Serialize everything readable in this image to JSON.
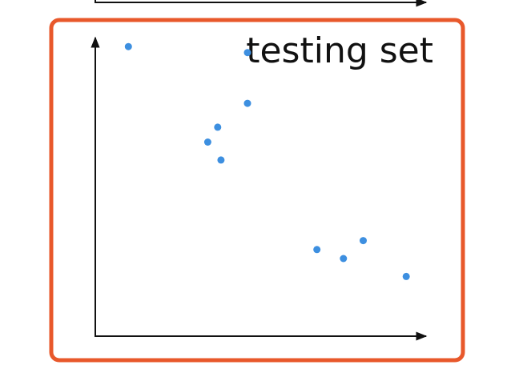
{
  "colors": {
    "frame": "#E8582B",
    "axis": "#111111",
    "point": "#3D8FE0",
    "title": "#111111",
    "background": "#FFFFFF"
  },
  "chart_data": {
    "type": "scatter",
    "title": "testing set",
    "xlabel": "",
    "ylabel": "",
    "grid": false,
    "legend": "none",
    "xlim": [
      0,
      10
    ],
    "ylim": [
      0,
      10
    ],
    "series": [
      {
        "points": [
          {
            "x": 1.0,
            "y": 9.7
          },
          {
            "x": 4.6,
            "y": 9.5
          },
          {
            "x": 4.6,
            "y": 7.8
          },
          {
            "x": 3.7,
            "y": 7.0
          },
          {
            "x": 3.4,
            "y": 6.5
          },
          {
            "x": 3.8,
            "y": 5.9
          },
          {
            "x": 6.7,
            "y": 2.9
          },
          {
            "x": 7.5,
            "y": 2.6
          },
          {
            "x": 8.1,
            "y": 3.2
          },
          {
            "x": 9.4,
            "y": 2.0
          }
        ]
      }
    ]
  }
}
